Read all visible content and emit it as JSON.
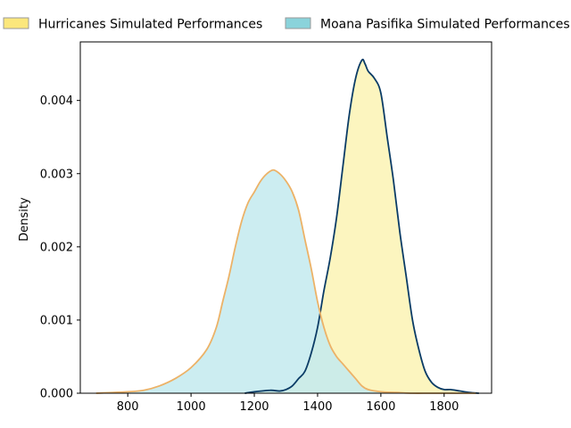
{
  "chart_data": {
    "type": "area",
    "title": "",
    "xlabel": "",
    "ylabel": "Density",
    "xlim": [
      650,
      1950
    ],
    "ylim": [
      0,
      0.0048
    ],
    "xticks": [
      800,
      1000,
      1200,
      1400,
      1600,
      1800
    ],
    "yticks": [
      0.0,
      0.001,
      0.002,
      0.003,
      0.004
    ],
    "ytick_labels": [
      "0.000",
      "0.001",
      "0.002",
      "0.003",
      "0.004"
    ],
    "grid": false,
    "legend_placement": "top",
    "series": [
      {
        "name": "Hurricanes Simulated Performances",
        "fill_color": "#fbf3b4",
        "legend_color": "#fbe77c",
        "line_color": "#0b3c66",
        "x": [
          1170,
          1200,
          1250,
          1280,
          1300,
          1320,
          1340,
          1360,
          1380,
          1400,
          1420,
          1440,
          1460,
          1480,
          1500,
          1520,
          1540,
          1550,
          1560,
          1580,
          1600,
          1620,
          1640,
          1660,
          1680,
          1700,
          1720,
          1740,
          1760,
          1780,
          1800,
          1820,
          1850,
          1880,
          1910
        ],
        "y": [
          0.0,
          2e-05,
          4e-05,
          3e-05,
          5e-05,
          0.0001,
          0.0002,
          0.0003,
          0.00055,
          0.0009,
          0.0014,
          0.00185,
          0.0024,
          0.0031,
          0.0038,
          0.0043,
          0.00455,
          0.0045,
          0.0044,
          0.0043,
          0.0041,
          0.0035,
          0.0029,
          0.0022,
          0.0016,
          0.001,
          0.0006,
          0.0003,
          0.00015,
          8e-05,
          5e-05,
          5e-05,
          3e-05,
          1e-05,
          0.0
        ]
      },
      {
        "name": "Moana Pasifika Simulated Performances",
        "fill_color": "#c3eaee",
        "legend_color": "#8ad3db",
        "line_color": "#ecb267",
        "x": [
          700,
          800,
          850,
          900,
          950,
          1000,
          1050,
          1080,
          1100,
          1120,
          1140,
          1160,
          1180,
          1200,
          1220,
          1240,
          1260,
          1280,
          1300,
          1320,
          1340,
          1360,
          1380,
          1400,
          1420,
          1440,
          1460,
          1480,
          1500,
          1520,
          1540,
          1560,
          1600,
          1650,
          1700,
          1750,
          1800,
          1850,
          1900
        ],
        "y": [
          0.0,
          2e-05,
          4e-05,
          0.0001,
          0.0002,
          0.00035,
          0.0006,
          0.0009,
          0.00125,
          0.0016,
          0.002,
          0.00235,
          0.0026,
          0.00275,
          0.0029,
          0.003,
          0.00305,
          0.003,
          0.0029,
          0.00275,
          0.0025,
          0.0021,
          0.0017,
          0.00125,
          0.0009,
          0.00065,
          0.0005,
          0.0004,
          0.0003,
          0.0002,
          0.0001,
          5e-05,
          2e-05,
          1e-05,
          0.0,
          0.0,
          0.0,
          0.0,
          0.0
        ]
      }
    ]
  }
}
